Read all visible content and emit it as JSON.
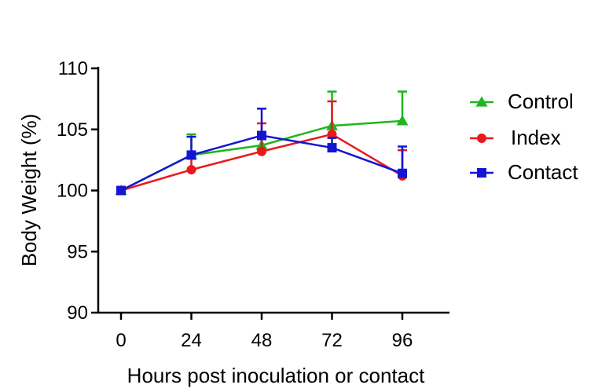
{
  "chart_data": {
    "type": "line",
    "xlabel": "Hours post inoculation or contact",
    "ylabel": "Body Weight (%)",
    "x": [
      0,
      24,
      48,
      72,
      96
    ],
    "xlim": [
      0,
      96
    ],
    "ylim": [
      90,
      110
    ],
    "x_ticks": [
      "0",
      "24",
      "48",
      "72",
      "96"
    ],
    "y_ticks": [
      "90",
      "95",
      "100",
      "105",
      "110"
    ],
    "grid": false,
    "legend_position": "right",
    "series": [
      {
        "name": "Control",
        "color": "#1fb51f",
        "marker": "triangle",
        "values": [
          100,
          102.9,
          103.7,
          105.3,
          105.7
        ],
        "error_upper": [
          100,
          104.6,
          104.3,
          108.1,
          108.1
        ]
      },
      {
        "name": "Index",
        "color": "#e8191e",
        "marker": "circle",
        "values": [
          100,
          101.7,
          103.2,
          104.6,
          101.2
        ],
        "error_upper": [
          100,
          102.9,
          105.5,
          107.3,
          103.3
        ]
      },
      {
        "name": "Contact",
        "color": "#1414d4",
        "marker": "square",
        "values": [
          100,
          102.9,
          104.5,
          103.5,
          101.4
        ],
        "error_upper": [
          100,
          104.4,
          106.7,
          104.3,
          103.6
        ]
      }
    ]
  }
}
